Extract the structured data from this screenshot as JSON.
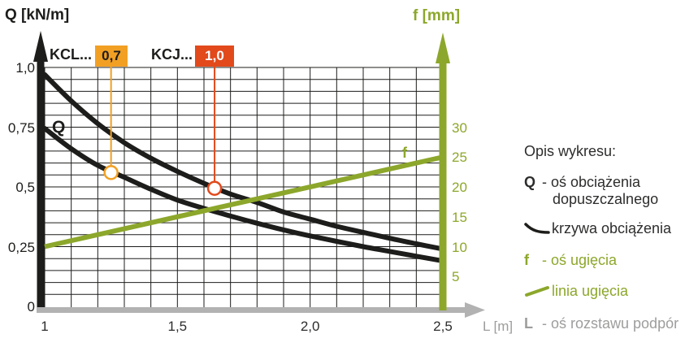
{
  "titles": {
    "left_axis": "Q [kN/m]",
    "right_axis": "f [mm]",
    "x_axis": "L [m]"
  },
  "series_labels": {
    "kcl": "KCL...",
    "kcl_badge": "0,7",
    "kcj": "KCJ...",
    "kcj_badge": "1,0",
    "q_curve": "Q",
    "f_line": "f"
  },
  "legend": {
    "title": "Opis wykresu:",
    "q_symbol": "Q",
    "q_line1": "- oś obciążenia",
    "q_line2": "dopuszczalnego",
    "curve_text": "krzywa obciążenia",
    "f_symbol": "f",
    "f_text": "- oś ugięcia",
    "line_text": "linia ugięcia",
    "l_symbol": "L",
    "l_text": "- oś rozstawu podpór"
  },
  "colors": {
    "black": "#1d1d1b",
    "green": "#8ca72b",
    "gray_axis": "#b2b2b2",
    "gray_text": "#9d9d9c",
    "dark_tick": "#2d2d2c",
    "orange": "#f2a024",
    "red_orange": "#e2491b",
    "grid": "#1d1d1b",
    "marker_fill": "#ffffff"
  },
  "chart_data": {
    "type": "line",
    "title": "",
    "x_label": "L [m]",
    "x_range": [
      1.0,
      2.5
    ],
    "x_major_ticks": [
      1.0,
      1.5,
      2.0,
      2.5
    ],
    "x_tick_labels": [
      "1",
      "1,5",
      "2,0",
      "2,5"
    ],
    "x_minor_step": 0.1,
    "y_left_label": "Q [kN/m]",
    "y_left_range": [
      0,
      1.0
    ],
    "y_left_ticks": [
      1.0,
      0.75,
      0.5,
      0.25,
      0
    ],
    "y_left_tick_labels": [
      "1,0",
      "0,75",
      "0,5",
      "0,25",
      "0"
    ],
    "y_left_minor_step": 0.05,
    "y_right_label": "f [mm]",
    "y_right_ticks": [
      30,
      25,
      20,
      15,
      10,
      5
    ],
    "y_right_tick_labels": [
      "30",
      "25",
      "20",
      "15",
      "10",
      "5"
    ],
    "y_right_full_scale_mm": 40,
    "grid": true,
    "series": [
      {
        "name": "KCJ...",
        "badge_value": "1,0",
        "kind": "load_curve",
        "axis": "left",
        "color": "#1d1d1b",
        "x": [
          1.0,
          1.1,
          1.2,
          1.3,
          1.4,
          1.5,
          1.6,
          1.7,
          1.8,
          1.9,
          2.0,
          2.1,
          2.2,
          2.3,
          2.4,
          2.5
        ],
        "y": [
          0.97,
          0.86,
          0.765,
          0.685,
          0.62,
          0.565,
          0.515,
          0.47,
          0.435,
          0.395,
          0.365,
          0.335,
          0.31,
          0.285,
          0.262,
          0.24
        ],
        "marker": {
          "x": 1.64,
          "y": 0.494,
          "color": "#e2491b"
        }
      },
      {
        "name": "KCL...",
        "badge_value": "0,7",
        "kind": "load_curve",
        "axis": "left",
        "color": "#1d1d1b",
        "x": [
          1.0,
          1.1,
          1.2,
          1.3,
          1.4,
          1.5,
          1.6,
          1.7,
          1.8,
          1.9,
          2.0,
          2.1,
          2.2,
          2.3,
          2.4,
          2.5
        ],
        "y": [
          0.745,
          0.66,
          0.59,
          0.54,
          0.49,
          0.445,
          0.41,
          0.378,
          0.348,
          0.32,
          0.295,
          0.272,
          0.25,
          0.23,
          0.21,
          0.19
        ],
        "marker": {
          "x": 1.25,
          "y": 0.56,
          "color": "#f2a024"
        }
      },
      {
        "name": "linia ugięcia",
        "kind": "deflection_line",
        "axis": "right",
        "color": "#8ca72b",
        "x": [
          1.0,
          2.5
        ],
        "f_mm": [
          10,
          25
        ]
      }
    ]
  }
}
